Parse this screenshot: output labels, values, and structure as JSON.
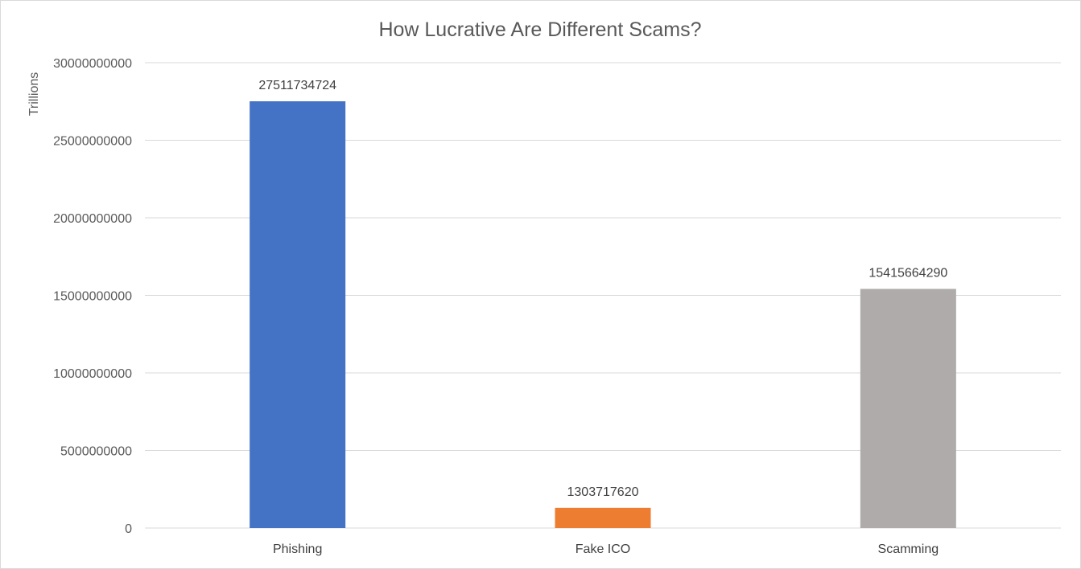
{
  "chart_data": {
    "type": "bar",
    "title": "How Lucrative Are Different Scams?",
    "xlabel": "",
    "ylabel": "Trillions",
    "categories": [
      "Phishing",
      "Fake ICO",
      "Scamming"
    ],
    "values": [
      27511734724,
      1303717620,
      15415664290
    ],
    "data_labels": [
      "27511734724",
      "1303717620",
      "15415664290"
    ],
    "colors": [
      "#4472c4",
      "#ed7d31",
      "#afabab"
    ],
    "ylim": [
      0,
      30000000000
    ],
    "yticks": [
      0,
      5000000000,
      10000000000,
      15000000000,
      20000000000,
      25000000000,
      30000000000
    ],
    "ytick_labels": [
      "0",
      "5000000000",
      "10000000000",
      "15000000000",
      "20000000000",
      "25000000000",
      "30000000000"
    ],
    "grid": true,
    "legend": "none"
  }
}
